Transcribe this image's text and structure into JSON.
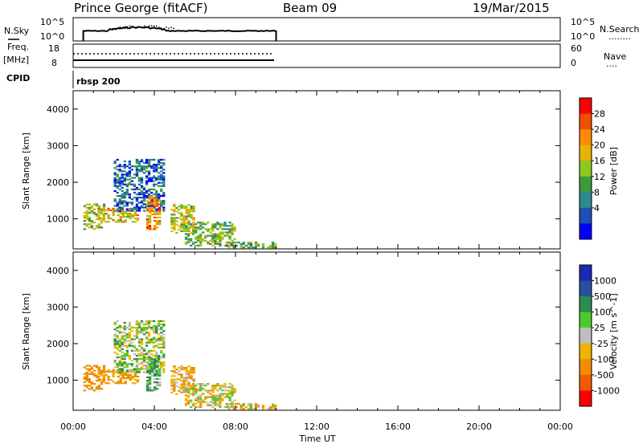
{
  "header": {
    "station": "Prince George (fitACF)",
    "beam": "Beam 09",
    "date": "19/Mar/2015"
  },
  "noise_panel": {
    "left_label": "N.Sky",
    "left_ticks": [
      "10^5",
      "10^0"
    ],
    "right_ticks": [
      "10^5",
      "10^0"
    ],
    "right_label": "N.Search",
    "right_legend": "........"
  },
  "freq_panel": {
    "left_label_1": "Freq.",
    "left_label_2": "[MHz]",
    "left_ticks": [
      "18",
      "8"
    ],
    "right_ticks": [
      "60",
      "0"
    ],
    "right_label": "Nave",
    "right_legend": "...."
  },
  "cpid": {
    "label": "CPID",
    "program": "rbsp 200"
  },
  "x_axis": {
    "label": "Time UT",
    "ticks": [
      "00:00",
      "04:00",
      "08:00",
      "12:00",
      "16:00",
      "20:00",
      "00:00"
    ],
    "range_hours": [
      0,
      24
    ]
  },
  "y_axis": {
    "label": "Slant Range [km]",
    "ticks": [
      "1000",
      "2000",
      "3000",
      "4000"
    ],
    "range_km": [
      180,
      4500
    ]
  },
  "power_bar": {
    "label": "Power [dB]",
    "ticks": [
      "4",
      "8",
      "12",
      "16",
      "20",
      "24",
      "28"
    ],
    "colors": [
      "#0000ff",
      "#1e4fb4",
      "#2d8a8c",
      "#3c9a3c",
      "#8cc81e",
      "#e6b400",
      "#ff8c00",
      "#f05000",
      "#ff0000"
    ]
  },
  "velocity_bar": {
    "label": "Velocity [m s^-1]",
    "ticks": [
      "1000",
      "500",
      "100",
      "25",
      "-25",
      "-100",
      "-500",
      "-1000"
    ],
    "colors": [
      "#1e28b4",
      "#2850a0",
      "#2d8c50",
      "#50c830",
      "#bebebe",
      "#f0b400",
      "#f08c00",
      "#f05a00",
      "#ff0000"
    ]
  },
  "chart_data": {
    "type": "heatmap",
    "panels": [
      "Power [dB]",
      "Velocity [m s^-1]"
    ],
    "x": "Time UT (hours)",
    "y": "Slant Range [km]",
    "xlim": [
      0,
      24
    ],
    "ylim": [
      180,
      4500
    ],
    "data_time_span_hours": [
      0.5,
      10
    ],
    "scatter_regions": [
      {
        "t_start": 0.5,
        "t_end": 1.5,
        "r_min": 700,
        "r_max": 1400,
        "power_db": 18,
        "velocity": -300
      },
      {
        "t_start": 1.2,
        "t_end": 3.2,
        "r_min": 900,
        "r_max": 1300,
        "power_db": 22,
        "velocity": -150
      },
      {
        "t_start": 2.0,
        "t_end": 4.5,
        "r_min": 1200,
        "r_max": 2600,
        "power_db": 8,
        "velocity": 25
      },
      {
        "t_start": 3.6,
        "t_end": 4.2,
        "r_min": 700,
        "r_max": 1600,
        "power_db": 26,
        "velocity": 100
      },
      {
        "t_start": 4.8,
        "t_end": 6.0,
        "r_min": 600,
        "r_max": 1400,
        "power_db": 20,
        "velocity": -100
      },
      {
        "t_start": 5.5,
        "t_end": 8.0,
        "r_min": 250,
        "r_max": 900,
        "power_db": 16,
        "velocity": -25
      },
      {
        "t_start": 7.5,
        "t_end": 10.0,
        "r_min": 200,
        "r_max": 350,
        "power_db": 14,
        "velocity": -50
      }
    ]
  }
}
